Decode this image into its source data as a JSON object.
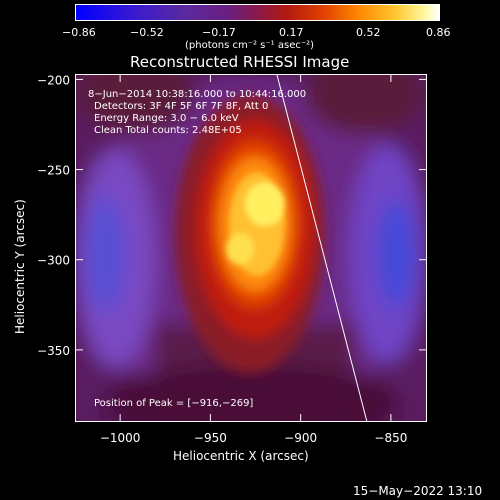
{
  "colorbar": {
    "ticks": [
      "−0.86",
      "−0.52",
      "−0.17",
      "0.17",
      "0.52",
      "0.86"
    ],
    "units": "(photons cm⁻² s⁻¹ asec⁻²)",
    "range": [
      -0.86,
      0.86
    ]
  },
  "chart_data": {
    "type": "heatmap",
    "title": "Reconstructed RHESSI Image",
    "xlabel": "Heliocentric X (arcsec)",
    "ylabel": "Heliocentric Y (arcsec)",
    "xlim": [
      -1025,
      -830
    ],
    "ylim": [
      -390,
      -197
    ],
    "xticks": [
      -1000,
      -950,
      -900,
      -850
    ],
    "xtick_labels": [
      "−1000",
      "−950",
      "−900",
      "−850"
    ],
    "yticks": [
      -200,
      -250,
      -300,
      -350
    ],
    "ytick_labels": [
      "−200",
      "−250",
      "−300",
      "−350"
    ],
    "peak": [
      -916,
      -269
    ],
    "annotations": {
      "time": "8−Jun−2014 10:38:16.000 to 10:44:16.000",
      "detectors": "Detectors: 3F 4F 5F 6F 7F 8F, Att 0",
      "energy": "Energy Range: 3.0 − 6.0 keV",
      "clean": "Clean    Total counts: 2.48E+05",
      "peak_text": "Position of Peak = [−916,−269]"
    },
    "limb_line": [
      [
        -913,
        -197
      ],
      [
        -863,
        -390
      ]
    ]
  },
  "footer": {
    "date": "15−May−2022 13:10"
  }
}
